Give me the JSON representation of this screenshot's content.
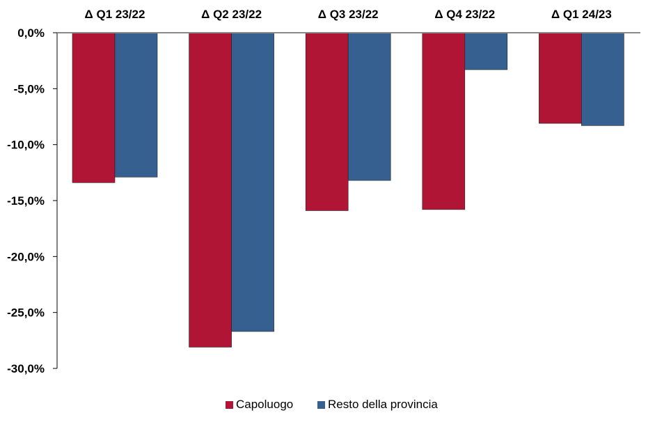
{
  "chart_data": {
    "type": "bar",
    "categories": [
      "Δ Q1 23/22",
      "Δ Q2 23/22",
      "Δ Q3 23/22",
      "Δ Q4 23/22",
      "Δ Q1 24/23"
    ],
    "series": [
      {
        "name": "Capoluogo",
        "color": "#B01535",
        "values": [
          -13.4,
          -28.1,
          -15.9,
          -15.8,
          -8.1
        ]
      },
      {
        "name": "Resto della provincia",
        "color": "#35608F",
        "values": [
          -12.9,
          -26.7,
          -13.2,
          -3.3,
          -8.3
        ]
      }
    ],
    "y_ticks": [
      0,
      -5,
      -10,
      -15,
      -20,
      -25,
      -30
    ],
    "y_tick_labels": [
      "0,0%",
      "-5,0%",
      "-10,0%",
      "-15,0%",
      "-20,0%",
      "-25,0%",
      "-30,0%"
    ],
    "ylim": [
      -30,
      0
    ],
    "grid": false,
    "legend_position": "bottom"
  }
}
